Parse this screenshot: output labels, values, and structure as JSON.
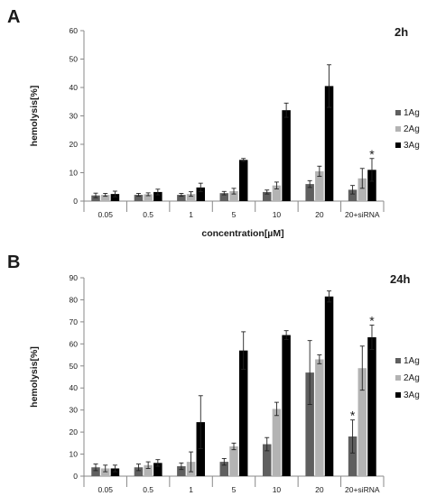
{
  "chart_data": [
    {
      "type": "bar",
      "panel": "A",
      "time_label": "2h",
      "xlabel": "concentration[µM]",
      "ylabel": "hemolysis[%]",
      "ylim": [
        0,
        60
      ],
      "yticks": [
        0,
        10,
        20,
        30,
        40,
        50,
        60
      ],
      "categories": [
        "0.05",
        "0.5",
        "1",
        "5",
        "10",
        "20",
        "20+siRNA"
      ],
      "series": [
        {
          "name": "1Ag",
          "color": "#5f5f5f",
          "values": [
            2.0,
            2.2,
            2.2,
            2.8,
            3.2,
            6.0,
            4.0
          ],
          "errors": [
            0.8,
            0.5,
            0.5,
            0.6,
            0.7,
            1.2,
            1.5
          ]
        },
        {
          "name": "2Ag",
          "color": "#b3b3b3",
          "values": [
            2.2,
            2.4,
            2.5,
            3.5,
            5.5,
            10.5,
            8.0
          ],
          "errors": [
            0.5,
            0.5,
            0.8,
            1.0,
            1.2,
            1.8,
            3.5
          ]
        },
        {
          "name": "3Ag",
          "color": "#000000",
          "values": [
            2.5,
            3.2,
            4.8,
            14.5,
            32.0,
            40.5,
            11.0
          ],
          "errors": [
            1.0,
            1.0,
            1.5,
            0.5,
            2.5,
            7.5,
            4.0
          ]
        }
      ],
      "annotations": [
        {
          "category": "20+siRNA",
          "series": "3Ag",
          "text": "*"
        }
      ],
      "legend": "right"
    },
    {
      "type": "bar",
      "panel": "B",
      "time_label": "24h",
      "xlabel": "concentration[µM]",
      "ylabel": "hemolysis[%]",
      "ylim": [
        0,
        90
      ],
      "yticks": [
        0,
        10,
        20,
        30,
        40,
        50,
        60,
        70,
        80,
        90
      ],
      "categories": [
        "0.05",
        "0.5",
        "1",
        "5",
        "10",
        "20",
        "20+siRNA"
      ],
      "series": [
        {
          "name": "1Ag",
          "color": "#5f5f5f",
          "values": [
            4.0,
            4.0,
            4.5,
            6.5,
            14.5,
            47.0,
            18.0
          ],
          "errors": [
            1.5,
            1.5,
            1.5,
            1.5,
            3.0,
            14.5,
            7.5
          ]
        },
        {
          "name": "2Ag",
          "color": "#b3b3b3",
          "values": [
            3.5,
            5.0,
            6.5,
            13.5,
            30.5,
            53.0,
            49.0
          ],
          "errors": [
            1.5,
            1.5,
            4.5,
            1.5,
            3.0,
            2.0,
            10.0
          ]
        },
        {
          "name": "3Ag",
          "color": "#000000",
          "values": [
            3.5,
            6.0,
            24.5,
            57.0,
            64.0,
            81.5,
            63.0
          ],
          "errors": [
            1.5,
            1.5,
            12.0,
            8.5,
            2.0,
            2.5,
            5.5
          ]
        }
      ],
      "annotations": [
        {
          "category": "20+siRNA",
          "series": "1Ag",
          "text": "*"
        },
        {
          "category": "20+siRNA",
          "series": "3Ag",
          "text": "*"
        }
      ],
      "legend": "right"
    }
  ]
}
